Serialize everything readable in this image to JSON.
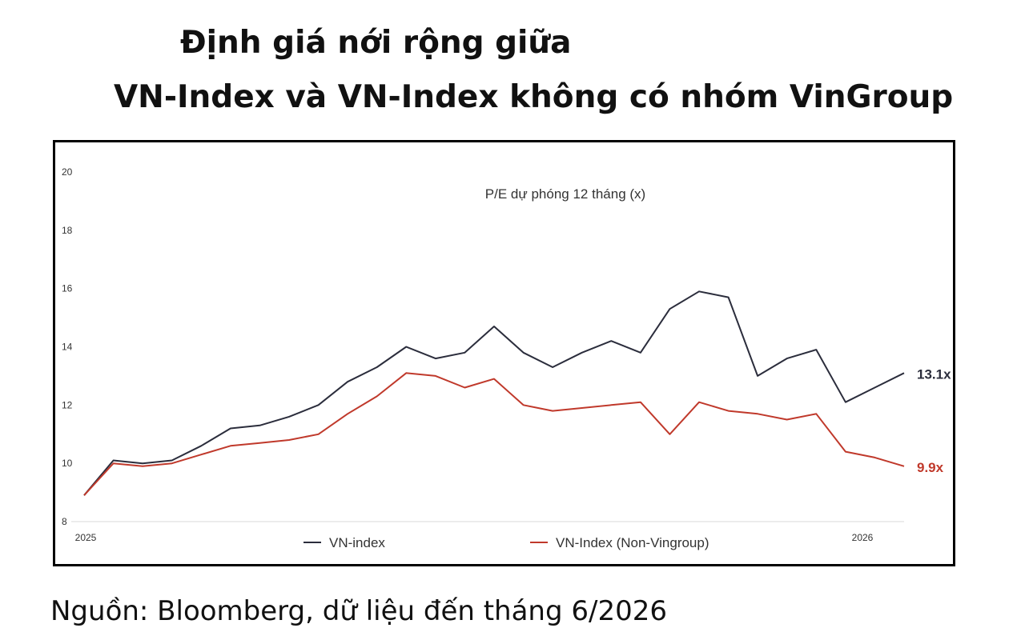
{
  "title": {
    "line1": "Định giá nới rộng giữa",
    "line2": "VN-Index và VN-Index không có nhóm VinGroup"
  },
  "source": "Nguồn: Bloomberg, dữ liệu đến tháng 6/2026",
  "chart_data": {
    "type": "line",
    "title": "P/E dự phóng 12 tháng (x)",
    "xlabel": "",
    "ylabel": "",
    "ylim": [
      8,
      20
    ],
    "yticks": [
      "8",
      "10",
      "12",
      "14",
      "16",
      "18",
      "20"
    ],
    "xticks": [
      "2025",
      "2026"
    ],
    "grid": false,
    "legend_position": "bottom",
    "x": [
      "2025-01",
      "2025-01",
      "2025-02",
      "2025-02",
      "2025-03",
      "2025-03",
      "2025-04",
      "2025-04",
      "2025-05",
      "2025-05",
      "2025-06",
      "2025-06",
      "2025-07",
      "2025-07",
      "2025-08",
      "2025-08",
      "2025-09",
      "2025-09",
      "2025-10",
      "2025-10",
      "2025-11",
      "2025-11",
      "2025-12",
      "2025-12",
      "2026-01",
      "2026-01",
      "2026-02",
      "2026-02",
      "2026-03"
    ],
    "series": [
      {
        "name": "VN-index",
        "color": "#2b2d3c",
        "end_label": "13.1x",
        "values": [
          8.9,
          10.1,
          10.0,
          10.1,
          10.6,
          11.2,
          11.3,
          11.6,
          12.0,
          12.8,
          13.3,
          14.0,
          13.6,
          13.8,
          14.7,
          13.8,
          13.3,
          13.8,
          14.2,
          13.8,
          15.3,
          15.9,
          15.7,
          13.0,
          13.6,
          13.9,
          12.1,
          12.6,
          13.1
        ]
      },
      {
        "name": "VN-Index (Non-Vingroup)",
        "color": "#c0392b",
        "end_label": "9.9x",
        "values": [
          8.9,
          10.0,
          9.9,
          10.0,
          10.3,
          10.6,
          10.7,
          10.8,
          11.0,
          11.7,
          12.3,
          13.1,
          13.0,
          12.6,
          12.9,
          12.0,
          11.8,
          11.9,
          12.0,
          12.1,
          11.0,
          12.1,
          11.8,
          11.7,
          11.5,
          11.7,
          10.4,
          10.2,
          9.9
        ]
      }
    ]
  }
}
